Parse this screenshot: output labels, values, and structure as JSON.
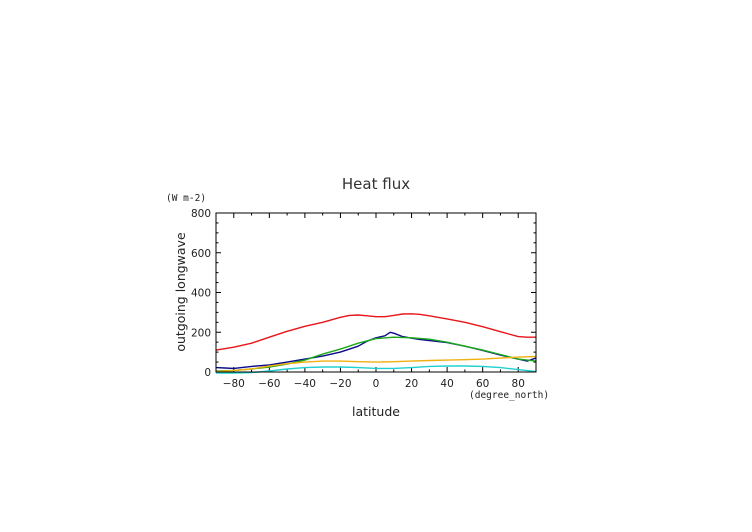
{
  "chart_data": {
    "type": "line",
    "title": "Heat flux",
    "xlabel": "latitude",
    "ylabel": "outgoing longwave",
    "x_unit": "(degree_north)",
    "y_unit": "(W m-2)",
    "xlim": [
      -90,
      90
    ],
    "ylim": [
      0,
      800
    ],
    "x_ticks": [
      -80,
      -60,
      -40,
      -20,
      0,
      20,
      40,
      60,
      80
    ],
    "y_ticks": [
      0,
      200,
      400,
      600,
      800
    ],
    "grid": false,
    "series": [
      {
        "color": "#e8151a",
        "x": [
          -90,
          -80,
          -70,
          -60,
          -50,
          -40,
          -30,
          -20,
          -15,
          -10,
          -5,
          0,
          5,
          10,
          15,
          20,
          25,
          30,
          40,
          50,
          60,
          70,
          80,
          85,
          90
        ],
        "y": [
          110,
          125,
          145,
          175,
          205,
          230,
          250,
          275,
          285,
          287,
          283,
          278,
          278,
          285,
          292,
          293,
          290,
          283,
          267,
          250,
          228,
          203,
          178,
          175,
          175
        ]
      },
      {
        "color": "#0a0a8a",
        "x": [
          -90,
          -85,
          -80,
          -70,
          -60,
          -50,
          -40,
          -30,
          -20,
          -10,
          -5,
          0,
          5,
          8,
          10,
          15,
          20,
          25,
          30,
          40,
          50,
          60,
          70,
          80,
          85,
          90
        ],
        "y": [
          22,
          20,
          18,
          28,
          35,
          50,
          65,
          80,
          100,
          130,
          155,
          172,
          182,
          200,
          195,
          178,
          170,
          163,
          158,
          148,
          130,
          108,
          85,
          65,
          55,
          70
        ]
      },
      {
        "color": "#1aa81a",
        "x": [
          -90,
          -80,
          -70,
          -60,
          -50,
          -40,
          -30,
          -20,
          -10,
          0,
          10,
          20,
          30,
          40,
          50,
          60,
          70,
          80,
          90
        ],
        "y": [
          5,
          8,
          15,
          25,
          40,
          60,
          90,
          115,
          145,
          168,
          175,
          172,
          165,
          150,
          130,
          110,
          88,
          65,
          55
        ]
      },
      {
        "color": "#f0b010",
        "x": [
          -90,
          -80,
          -70,
          -60,
          -50,
          -40,
          -30,
          -20,
          -10,
          0,
          10,
          20,
          30,
          40,
          50,
          60,
          70,
          80,
          90
        ],
        "y": [
          3,
          8,
          15,
          30,
          42,
          50,
          55,
          55,
          52,
          50,
          52,
          55,
          58,
          60,
          62,
          65,
          70,
          75,
          78
        ]
      },
      {
        "color": "#20d0d0",
        "x": [
          -90,
          -80,
          -70,
          -60,
          -50,
          -40,
          -30,
          -20,
          -10,
          0,
          10,
          20,
          30,
          40,
          50,
          60,
          70,
          80,
          90
        ],
        "y": [
          -5,
          -5,
          -3,
          5,
          15,
          22,
          25,
          25,
          22,
          18,
          18,
          22,
          28,
          30,
          30,
          28,
          22,
          12,
          2
        ]
      }
    ]
  }
}
